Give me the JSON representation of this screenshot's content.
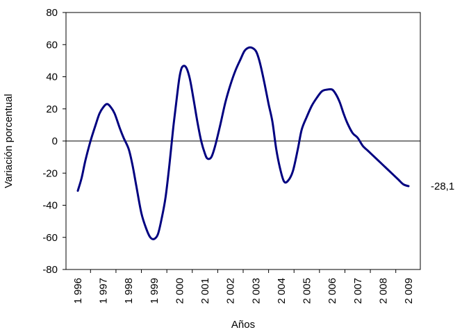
{
  "chart_data": {
    "type": "line",
    "title": "",
    "xlabel": "Años",
    "ylabel": "Variación porcentual",
    "ylim": [
      -80,
      80
    ],
    "xlim": [
      1996,
      2009
    ],
    "yticks": [
      80,
      60,
      40,
      20,
      0,
      -20,
      -40,
      -60,
      -80
    ],
    "ytick_labels": [
      "80",
      "60",
      "40",
      "20",
      "0",
      "-20",
      "-40",
      "-60",
      "-80"
    ],
    "xtick_labels": [
      "1 996",
      "1 997",
      "1 998",
      "1 999",
      "2 000",
      "2 001",
      "2 002",
      "2 003",
      "2 004",
      "2 005",
      "2 006",
      "2 007",
      "2 008",
      "2 009"
    ],
    "grid": false,
    "legend": "none",
    "line_color": "#000080",
    "end_label": "-28,1",
    "series": [
      {
        "x": [
          1996.0,
          1996.15,
          1996.3,
          1996.5,
          1996.7,
          1996.85,
          1997.0,
          1997.15,
          1997.3,
          1997.45,
          1997.65,
          1997.8,
          1998.0,
          1998.15,
          1998.3,
          1998.5,
          1998.7,
          1998.85,
          1999.0,
          1999.15,
          1999.3,
          1999.45,
          1999.6,
          1999.75,
          1999.9,
          2000.0,
          2000.1,
          2000.25,
          2000.4,
          2000.55,
          2000.7,
          2000.85,
          2001.0,
          2001.1,
          2001.25,
          2001.4,
          2001.6,
          2001.8,
          2002.0,
          2002.2,
          2002.4,
          2002.55,
          2002.7,
          2002.85,
          2003.0,
          2003.1,
          2003.2,
          2003.35,
          2003.5,
          2003.65,
          2003.8,
          2003.95,
          2004.1,
          2004.25,
          2004.45,
          2004.65,
          2004.8,
          2005.0,
          2005.2,
          2005.4,
          2005.6,
          2005.8,
          2006.0,
          2006.15,
          2006.3,
          2006.45,
          2006.6,
          2006.8,
          2007.0,
          2007.2,
          2007.4,
          2007.6,
          2007.8,
          2008.0,
          2008.2,
          2008.4,
          2008.6,
          2008.8,
          2009.0
        ],
        "values": [
          -31,
          -23,
          -12,
          0,
          10,
          17,
          21,
          23,
          21,
          17,
          8,
          2,
          -5,
          -15,
          -28,
          -45,
          -55,
          -60,
          -61,
          -58,
          -48,
          -35,
          -15,
          8,
          28,
          40,
          46,
          46,
          39,
          26,
          12,
          0,
          -8,
          -11,
          -10,
          -3,
          10,
          24,
          35,
          44,
          51,
          56,
          58,
          58,
          56,
          52,
          46,
          35,
          23,
          12,
          -5,
          -17,
          -25,
          -25,
          -19,
          -5,
          7,
          15,
          22,
          27,
          31,
          32,
          32,
          29,
          24,
          17,
          11,
          5,
          2,
          -3,
          -6,
          -9,
          -12,
          -15,
          -18,
          -21,
          -24,
          -27,
          -28.1
        ]
      }
    ]
  }
}
